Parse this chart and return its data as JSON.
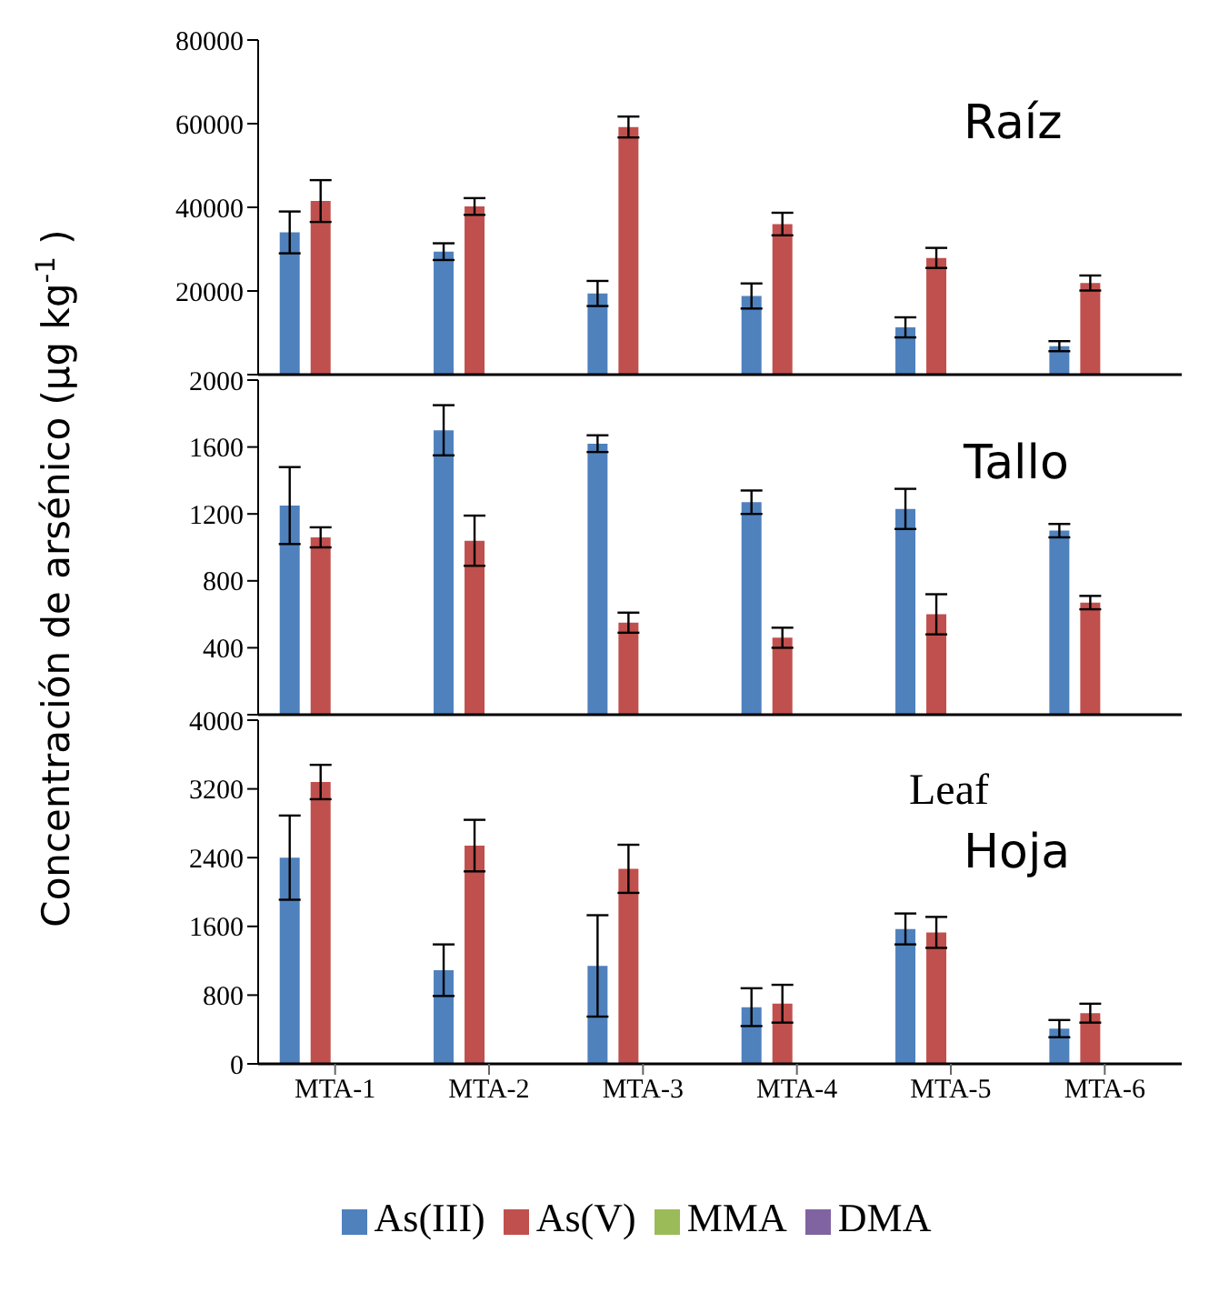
{
  "chart_data": [
    {
      "type": "bar",
      "title": "Raíz",
      "categories": [
        null,
        null,
        null,
        null,
        null,
        null
      ],
      "ylim": [
        0,
        80000
      ],
      "yticks": [
        {
          "value": 0,
          "label": null
        },
        20000,
        40000,
        60000,
        80000
      ],
      "tick_labels": "y",
      "grid": false,
      "legend": false,
      "series": [
        {
          "color": "#4f81bd",
          "values": [
            34000,
            29400,
            19400,
            18800,
            11300,
            6800
          ],
          "errors": [
            5000,
            2000,
            3000,
            3000,
            2400,
            1200
          ]
        },
        {
          "color": "#c0504d",
          "values": [
            41500,
            40200,
            59200,
            36000,
            27900,
            21900
          ],
          "errors": [
            5000,
            2000,
            2500,
            2700,
            2400,
            1800
          ]
        },
        {
          "color": "#9bbb59",
          "values": [
            null,
            null,
            null,
            null,
            null,
            null
          ]
        },
        {
          "color": "#8064a2",
          "values": [
            null,
            null,
            null,
            null,
            null,
            null
          ]
        }
      ]
    },
    {
      "type": "bar",
      "title": "Tallo",
      "ylabel": "Concentración de arsénico (µg kg$^{-1}$)",
      "categories": [
        null,
        null,
        null,
        null,
        null,
        null
      ],
      "ylim": [
        0,
        2000
      ],
      "yticks": [
        {
          "value": 0,
          "label": null
        },
        400,
        800,
        1200,
        1600,
        2000
      ],
      "tick_labels": "y",
      "grid": false,
      "legend": false,
      "series": [
        {
          "color": "#4f81bd",
          "values": [
            1250,
            1700,
            1620,
            1270,
            1230,
            1100
          ],
          "errors": [
            230,
            150,
            50,
            70,
            120,
            40
          ]
        },
        {
          "color": "#c0504d",
          "values": [
            1060,
            1040,
            550,
            460,
            600,
            670
          ],
          "errors": [
            60,
            150,
            60,
            60,
            120,
            40
          ]
        },
        {
          "color": "#9bbb59",
          "values": [
            null,
            null,
            null,
            null,
            null,
            null
          ]
        },
        {
          "color": "#8064a2",
          "values": [
            null,
            null,
            null,
            null,
            null,
            null
          ]
        }
      ]
    },
    {
      "type": "bar",
      "title": "Hoja",
      "annotations": [
        "Leaf"
      ],
      "categories": [
        "MTA-1",
        "MTA-2",
        "MTA-3",
        "MTA-4",
        "MTA-5",
        "MTA-6"
      ],
      "ylim": [
        0,
        4000
      ],
      "yticks": [
        0,
        800,
        1600,
        2400,
        3200,
        4000
      ],
      "grid": false,
      "legend": "bottom",
      "series": [
        {
          "name": "As(III)",
          "color": "#4f81bd",
          "values": [
            2400,
            1090,
            1140,
            660,
            1570,
            410
          ],
          "errors": [
            490,
            300,
            590,
            220,
            180,
            100
          ]
        },
        {
          "name": "As(V)",
          "color": "#c0504d",
          "values": [
            3280,
            2540,
            2270,
            700,
            1530,
            590
          ],
          "errors": [
            200,
            300,
            280,
            220,
            180,
            110
          ]
        },
        {
          "name": "MMA",
          "color": "#9bbb59",
          "values": [
            null,
            null,
            null,
            null,
            null,
            null
          ]
        },
        {
          "name": "DMA",
          "color": "#8064a2",
          "values": [
            null,
            null,
            null,
            null,
            null,
            null
          ]
        }
      ]
    }
  ]
}
